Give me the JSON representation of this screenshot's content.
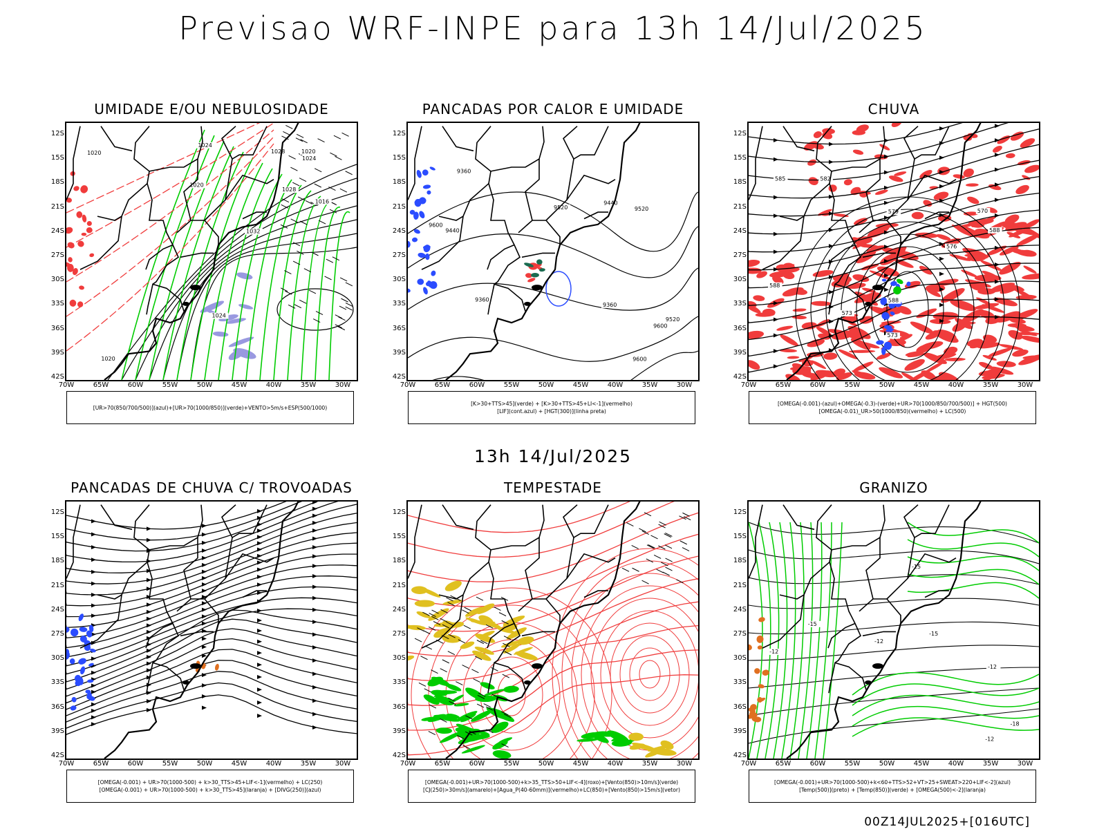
{
  "title": "Previsao WRF-INPE  para 13h 14/Jul/2025",
  "subtitle": "13h 14/Jul/2025",
  "footer": "00Z14JUL2025+[016UTC]",
  "lat_labels": [
    "12S",
    "15S",
    "18S",
    "21S",
    "24S",
    "27S",
    "30S",
    "33S",
    "36S",
    "39S",
    "42S"
  ],
  "lon_labels": [
    "70W",
    "65W",
    "60W",
    "55W",
    "50W",
    "45W",
    "40W",
    "35W",
    "30W"
  ],
  "colors": {
    "red": "#f03c3c",
    "green": "#00cc00",
    "blue": "#2b4cff",
    "purple": "#9999e0",
    "yellow": "#e0c020",
    "orange": "#e07020"
  },
  "panels": [
    {
      "title": "UMIDADE E/OU NEBULOSIDADE",
      "legend": [
        "[UR>70(850/700/500)](azul)+[UR>70(1000/850)](verde)+VENTO>5m/s+ESP(500/1000)"
      ],
      "contour_labels": [
        "1020",
        "1020",
        "1024",
        "1024",
        "1020",
        "1024",
        "1028",
        "1032",
        "1028",
        "1020",
        "1016"
      ]
    },
    {
      "title": "PANCADAS POR CALOR E UMIDADE",
      "legend": [
        "[K>30+TTS>45](verde) + [K>30+TTS>45+LI<-1](vermelho)",
        "[LIF](cont.azul) + [HGT(300)](linha preta)"
      ],
      "contour_labels": [
        "9600",
        "9520",
        "9600",
        "9600",
        "9520",
        "9440",
        "9440",
        "9360",
        "9520",
        "9360",
        "9360"
      ]
    },
    {
      "title": "CHUVA",
      "legend": [
        "[OMEGA(-0.001)-(azul)+OMEGA(-0.3)-(verde)+UR>70(1000/850/700/500)] + HGT(500)",
        "[OMEGA(-0.01)_UR>50(1000/850)(vermelho) + LC(500)"
      ],
      "contour_labels": [
        "588",
        "588",
        "588",
        "585",
        "582",
        "579",
        "576",
        "573",
        "570",
        "573"
      ]
    },
    {
      "title": "PANCADAS DE CHUVA C/ TROVOADAS",
      "legend": [
        "[OMEGA(-0.001) + UR>70(1000-500) + k>30_TTS>45+LIF<-1](vermelho) + LC(250)",
        "[OMEGA(-0.001) + UR>70(1000-500) + k>30_TTS>45](laranja) + [DIVG(250)](azul)"
      ],
      "contour_labels": []
    },
    {
      "title": "TEMPESTADE",
      "legend": [
        "[OMEGA(-0.001)+UR>70(1000-500)+k>35_TTS>50+LIF<-4](roxo)+[Vento(850)>10m/s](verde)",
        "[CJ(250)>30m/s](amarelo)+[Agua_P(40-60mm)](vermelho)+LC(850)+[Vento(850)>15m/s](vetor)"
      ],
      "contour_labels": []
    },
    {
      "title": "GRANIZO",
      "legend": [
        "[OMEGA(-0.001)+UR>70(1000-500)+k<60+TTS>52+VT>25+SWEAT>220+LIF<-2](azul)",
        "[Temp(500)](preto) + [Temp(850)](verde) + [OMEGA(500)<-2](laranja)"
      ],
      "contour_labels": [
        "-12",
        "-15",
        "-12",
        "-12",
        "-15",
        "-18",
        "-15",
        "-12"
      ]
    }
  ]
}
